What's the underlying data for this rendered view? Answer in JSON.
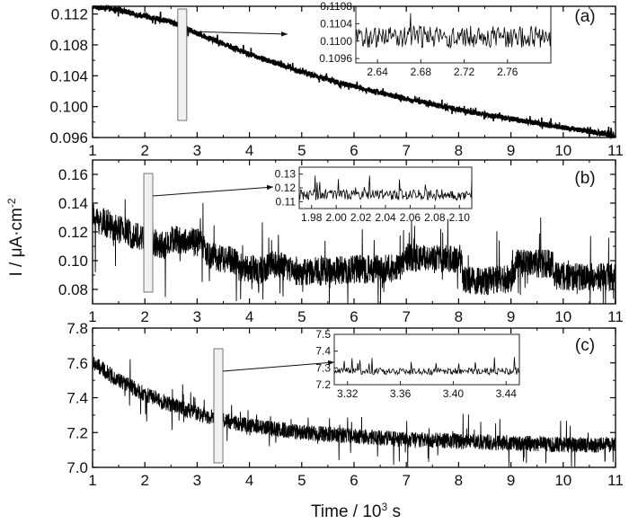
{
  "figure": {
    "xlabel": "Time / 10",
    "xlabel_sup": "3",
    "xlabel_unit": " s",
    "ylabel": "I / μA·cm",
    "ylabel_sup": "-2"
  },
  "chart_data": [
    {
      "type": "line",
      "label": "(a)",
      "x_range": [
        1,
        11
      ],
      "x_ticks": [
        1,
        2,
        3,
        4,
        5,
        6,
        7,
        8,
        9,
        10,
        11
      ],
      "x_tick_labels": [
        "1",
        "2",
        "3",
        "4",
        "5",
        "6",
        "7",
        "8",
        "9",
        "10",
        "11"
      ],
      "ylim": [
        0.096,
        0.113
      ],
      "y_ticks": [
        0.096,
        0.1,
        0.104,
        0.108,
        0.112
      ],
      "y_tick_labels": [
        "0.096",
        "0.100",
        "0.104",
        "0.108",
        "0.112"
      ],
      "trend": {
        "x": [
          1,
          1.5,
          2,
          2.5,
          3,
          4,
          5,
          6,
          7,
          8,
          9,
          10,
          11
        ],
        "y": [
          0.113,
          0.1125,
          0.1117,
          0.111,
          0.1095,
          0.1068,
          0.1045,
          0.1026,
          0.101,
          0.0996,
          0.0984,
          0.0973,
          0.0963
        ]
      },
      "noise_amplitude": 0.00035,
      "spike_amplitude": 0.0008,
      "highlight_window": [
        2.63,
        2.8
      ],
      "inset": {
        "x_range": [
          2.62,
          2.8
        ],
        "x_ticks": [
          2.64,
          2.68,
          2.72,
          2.76
        ],
        "x_tick_labels": [
          "2.64",
          "2.68",
          "2.72",
          "2.76"
        ],
        "ylim": [
          0.1095,
          0.1108
        ],
        "y_ticks": [
          0.1096,
          0.11,
          0.1104,
          0.1108
        ],
        "y_tick_labels": [
          "0.1096",
          "0.1100",
          "0.1104",
          "0.1108"
        ],
        "base": 0.1101,
        "noise_amplitude": 0.00025,
        "spike_amplitude": 0.0005
      }
    },
    {
      "type": "line",
      "label": "(b)",
      "x_range": [
        1,
        11
      ],
      "x_ticks": [
        1,
        2,
        3,
        4,
        5,
        6,
        7,
        8,
        9,
        10,
        11
      ],
      "x_tick_labels": [
        "1",
        "2",
        "3",
        "4",
        "5",
        "6",
        "7",
        "8",
        "9",
        "10",
        "11"
      ],
      "ylim": [
        0.07,
        0.17
      ],
      "y_ticks": [
        0.08,
        0.1,
        0.12,
        0.14,
        0.16
      ],
      "y_tick_labels": [
        "0.08",
        "0.10",
        "0.12",
        "0.14",
        "0.16"
      ],
      "trend": {
        "x": [
          1,
          1.5,
          2,
          2.4,
          2.5,
          3.1,
          3.2,
          3.7,
          3.8,
          4.3,
          4.4,
          5.0,
          5.5,
          6.0,
          6.5,
          6.9,
          7.0,
          7.5,
          8.05,
          8.1,
          8.5,
          9.0,
          9.1,
          9.8,
          9.85,
          10.5,
          11
        ],
        "y": [
          0.13,
          0.122,
          0.115,
          0.11,
          0.115,
          0.112,
          0.104,
          0.1,
          0.096,
          0.093,
          0.098,
          0.092,
          0.093,
          0.094,
          0.094,
          0.095,
          0.103,
          0.101,
          0.101,
          0.086,
          0.086,
          0.087,
          0.098,
          0.098,
          0.089,
          0.089,
          0.088
        ]
      },
      "noise_amplitude": 0.01,
      "spike_amplitude": 0.028,
      "highlight_window": [
        1.98,
        2.1
      ],
      "inset": {
        "x_range": [
          1.97,
          2.11
        ],
        "x_ticks": [
          1.98,
          2.0,
          2.02,
          2.04,
          2.06,
          2.08,
          2.1
        ],
        "x_tick_labels": [
          "1.98",
          "2.00",
          "2.02",
          "2.04",
          "2.06",
          "2.08",
          "2.10"
        ],
        "ylim": [
          0.105,
          0.135
        ],
        "y_ticks": [
          0.11,
          0.12,
          0.13
        ],
        "y_tick_labels": [
          "0.11",
          "0.12",
          "0.13"
        ],
        "base": 0.115,
        "noise_amplitude": 0.004,
        "spike_amplitude": 0.012
      }
    },
    {
      "type": "line",
      "label": "(c)",
      "x_range": [
        1,
        11
      ],
      "x_ticks": [
        1,
        2,
        3,
        4,
        5,
        6,
        7,
        8,
        9,
        10,
        11
      ],
      "x_tick_labels": [
        "1",
        "2",
        "3",
        "4",
        "5",
        "6",
        "7",
        "8",
        "9",
        "10",
        "11"
      ],
      "ylim": [
        7.0,
        7.8
      ],
      "y_ticks": [
        7.0,
        7.2,
        7.4,
        7.6,
        7.8
      ],
      "y_tick_labels": [
        "7.0",
        "7.2",
        "7.4",
        "7.6",
        "7.8"
      ],
      "trend": {
        "x": [
          1,
          1.5,
          2,
          2.5,
          3,
          3.5,
          4,
          5,
          6,
          7,
          8,
          9,
          10,
          11
        ],
        "y": [
          7.6,
          7.5,
          7.42,
          7.36,
          7.31,
          7.27,
          7.24,
          7.2,
          7.18,
          7.16,
          7.15,
          7.14,
          7.13,
          7.13
        ]
      },
      "noise_amplitude": 0.045,
      "spike_amplitude": 0.13,
      "highlight_window": [
        3.32,
        3.45
      ],
      "inset": {
        "x_range": [
          3.31,
          3.45
        ],
        "x_ticks": [
          3.32,
          3.36,
          3.4,
          3.44
        ],
        "x_tick_labels": [
          "3.32",
          "3.36",
          "3.40",
          "3.44"
        ],
        "ylim": [
          7.2,
          7.5
        ],
        "y_ticks": [
          7.2,
          7.3,
          7.4,
          7.5
        ],
        "y_tick_labels": [
          "7.2",
          "7.3",
          "7.4",
          "7.5"
        ],
        "base": 7.28,
        "noise_amplitude": 0.02,
        "spike_amplitude": 0.08
      }
    }
  ]
}
